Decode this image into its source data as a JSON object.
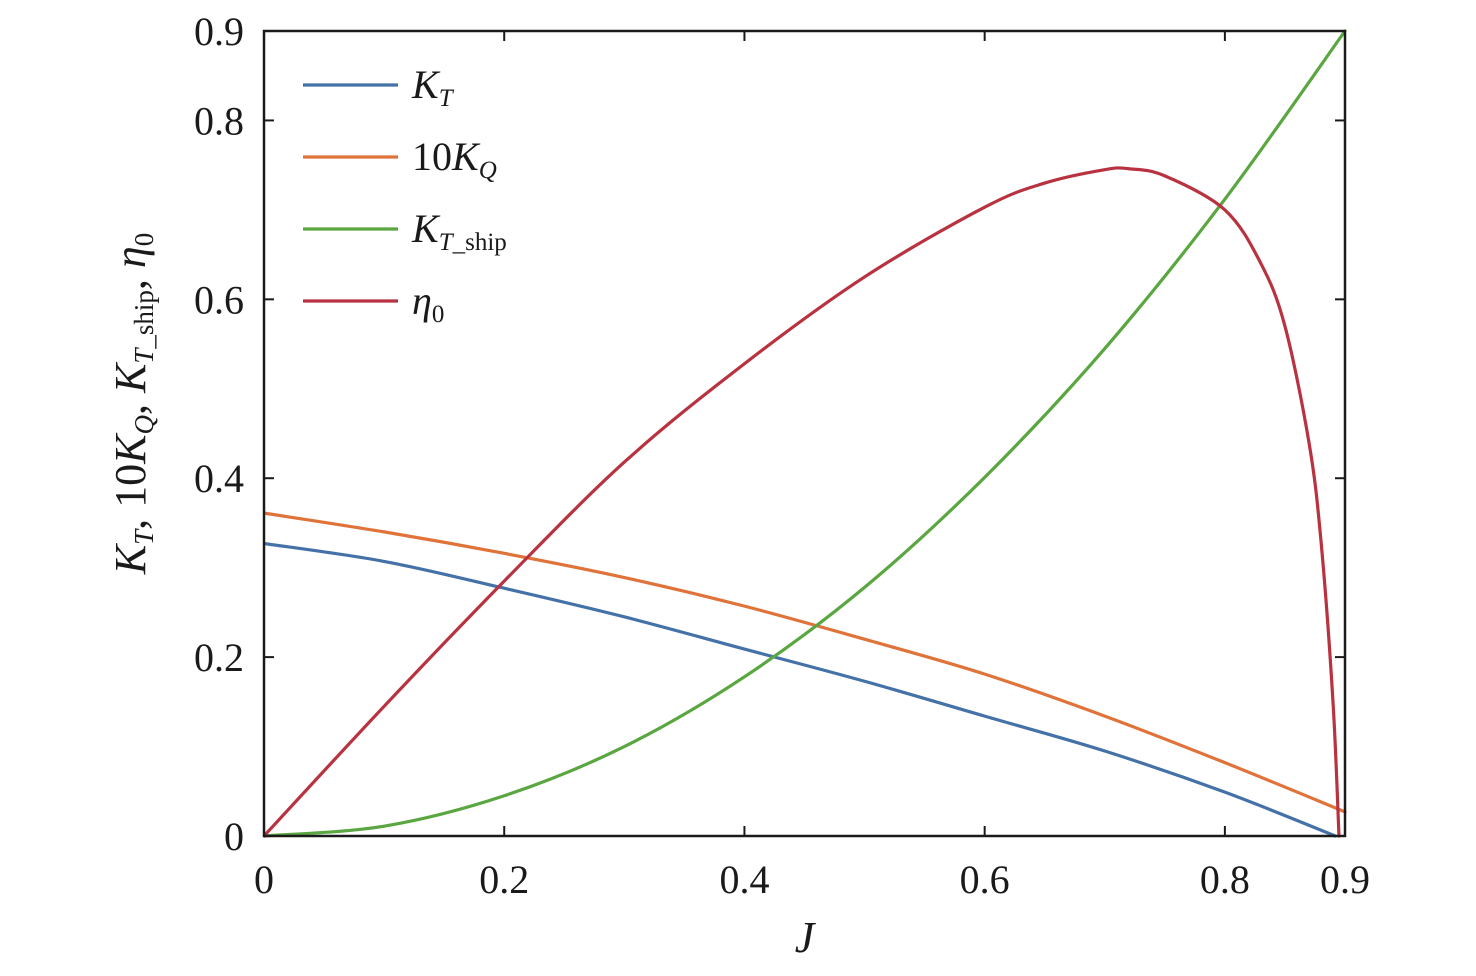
{
  "chart_data": {
    "type": "line",
    "xlabel": "J",
    "ylabel": {
      "parts": [
        {
          "text": "K",
          "style": "italic"
        },
        {
          "text": "T",
          "style": "italic-sub"
        },
        {
          "text": ", 10",
          "style": "normal"
        },
        {
          "text": "K",
          "style": "italic"
        },
        {
          "text": "Q",
          "style": "italic-sub"
        },
        {
          "text": ", ",
          "style": "normal"
        },
        {
          "text": "K",
          "style": "italic"
        },
        {
          "text": "T",
          "style": "italic-sub"
        },
        {
          "text": "_ship",
          "style": "sub"
        },
        {
          "text": ", ",
          "style": "normal"
        },
        {
          "text": "η",
          "style": "italic"
        },
        {
          "text": "0",
          "style": "sub"
        }
      ]
    },
    "xlim": [
      0,
      0.9
    ],
    "ylim": [
      0,
      0.9
    ],
    "xticks": [
      {
        "value": 0,
        "label": "0"
      },
      {
        "value": 0.2,
        "label": "0.2"
      },
      {
        "value": 0.4,
        "label": "0.4"
      },
      {
        "value": 0.6,
        "label": "0.6"
      },
      {
        "value": 0.8,
        "label": "0.8"
      },
      {
        "value": 0.9,
        "label": "0.9"
      }
    ],
    "yticks": [
      {
        "value": 0,
        "label": "0"
      },
      {
        "value": 0.2,
        "label": "0.2"
      },
      {
        "value": 0.4,
        "label": "0.4"
      },
      {
        "value": 0.6,
        "label": "0.6"
      },
      {
        "value": 0.8,
        "label": "0.8"
      },
      {
        "value": 0.9,
        "label": "0.9"
      }
    ],
    "grid": false,
    "legend_position": "top-left",
    "series": [
      {
        "name": "KT",
        "legend": [
          {
            "text": "K",
            "style": "italic"
          },
          {
            "text": "T",
            "style": "italic-sub"
          }
        ],
        "color": "#4472a8",
        "points": [
          [
            0,
            0.327
          ],
          [
            0.1,
            0.307
          ],
          [
            0.2,
            0.277
          ],
          [
            0.3,
            0.245
          ],
          [
            0.4,
            0.209
          ],
          [
            0.5,
            0.173
          ],
          [
            0.6,
            0.134
          ],
          [
            0.7,
            0.095
          ],
          [
            0.8,
            0.049
          ],
          [
            0.892,
            0.0
          ]
        ]
      },
      {
        "name": "10KQ",
        "legend": [
          {
            "text": "10",
            "style": "normal"
          },
          {
            "text": "K",
            "style": "italic"
          },
          {
            "text": "Q",
            "style": "italic-sub"
          }
        ],
        "color": "#e0733a",
        "points": [
          [
            0,
            0.361
          ],
          [
            0.1,
            0.34
          ],
          [
            0.2,
            0.316
          ],
          [
            0.3,
            0.289
          ],
          [
            0.4,
            0.257
          ],
          [
            0.5,
            0.22
          ],
          [
            0.6,
            0.181
          ],
          [
            0.7,
            0.134
          ],
          [
            0.8,
            0.082
          ],
          [
            0.9,
            0.027
          ]
        ]
      },
      {
        "name": "KT_ship",
        "legend": [
          {
            "text": "K",
            "style": "italic"
          },
          {
            "text": "T",
            "style": "italic-sub"
          },
          {
            "text": "_ship",
            "style": "sub"
          }
        ],
        "color": "#5aa640",
        "points": [
          [
            0,
            0.0
          ],
          [
            0.1,
            0.011
          ],
          [
            0.2,
            0.045
          ],
          [
            0.3,
            0.1
          ],
          [
            0.4,
            0.178
          ],
          [
            0.5,
            0.278
          ],
          [
            0.6,
            0.401
          ],
          [
            0.7,
            0.545
          ],
          [
            0.8,
            0.712
          ],
          [
            0.9,
            0.9
          ]
        ]
      },
      {
        "name": "η0",
        "legend": [
          {
            "text": "η",
            "style": "italic"
          },
          {
            "text": "0",
            "style": "sub"
          }
        ],
        "color": "#b83240",
        "points": [
          [
            0,
            0.0
          ],
          [
            0.1,
            0.145
          ],
          [
            0.2,
            0.285
          ],
          [
            0.3,
            0.418
          ],
          [
            0.4,
            0.528
          ],
          [
            0.5,
            0.625
          ],
          [
            0.6,
            0.703
          ],
          [
            0.65,
            0.73
          ],
          [
            0.7,
            0.745
          ],
          [
            0.72,
            0.746
          ],
          [
            0.75,
            0.738
          ],
          [
            0.8,
            0.7
          ],
          [
            0.83,
            0.64
          ],
          [
            0.85,
            0.57
          ],
          [
            0.87,
            0.44
          ],
          [
            0.88,
            0.33
          ],
          [
            0.89,
            0.15
          ],
          [
            0.895,
            0.0
          ]
        ]
      }
    ]
  }
}
